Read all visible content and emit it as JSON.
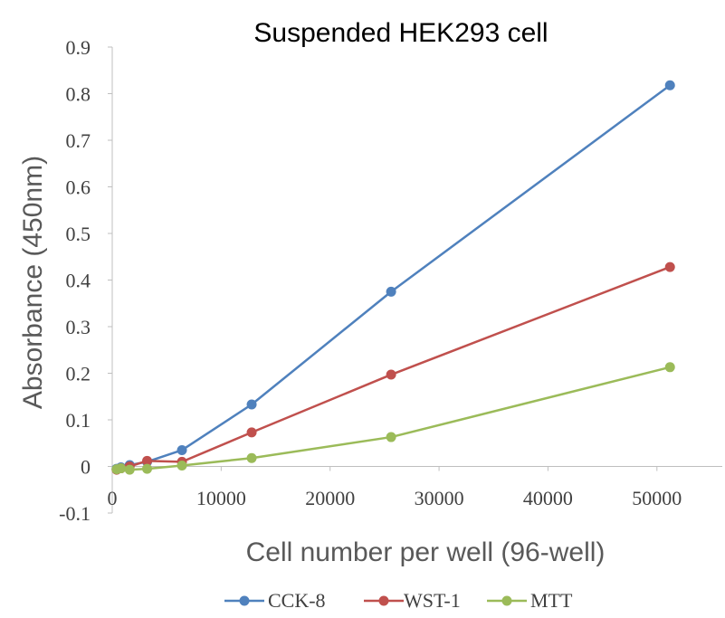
{
  "chart_data": {
    "type": "line",
    "title": "Suspended HEK293 cell",
    "xlabel": "Cell number per well (96-well)",
    "ylabel": "Absorbance (450nm)",
    "xlim": [
      0,
      56000
    ],
    "ylim": [
      -0.1,
      0.9
    ],
    "x_ticks": [
      "0",
      "10000",
      "20000",
      "30000",
      "40000",
      "50000"
    ],
    "x_tick_values": [
      0,
      10000,
      20000,
      30000,
      40000,
      50000
    ],
    "y_ticks": [
      "0.9",
      "0.8",
      "0.7",
      "0.6",
      "0.5",
      "0.4",
      "0.3",
      "0.2",
      "0.1",
      "0",
      "-0.1"
    ],
    "y_tick_values": [
      0.9,
      0.8,
      0.7,
      0.6,
      0.5,
      0.4,
      0.3,
      0.2,
      0.1,
      0,
      -0.1
    ],
    "grid": false,
    "legend_position": "bottom",
    "x": [
      400,
      800,
      1600,
      3200,
      6400,
      12800,
      25600,
      51200
    ],
    "series": [
      {
        "name": "CCK-8",
        "color": "#4F81BD",
        "values": [
          -0.005,
          -0.002,
          0.003,
          0.01,
          0.035,
          0.133,
          0.375,
          0.818
        ]
      },
      {
        "name": "WST-1",
        "color": "#C0504D",
        "values": [
          -0.007,
          -0.004,
          0.0,
          0.012,
          0.01,
          0.073,
          0.197,
          0.428
        ]
      },
      {
        "name": "MTT",
        "color": "#9BBB59",
        "values": [
          -0.006,
          -0.004,
          -0.007,
          -0.005,
          0.002,
          0.018,
          0.063,
          0.213
        ]
      }
    ]
  }
}
